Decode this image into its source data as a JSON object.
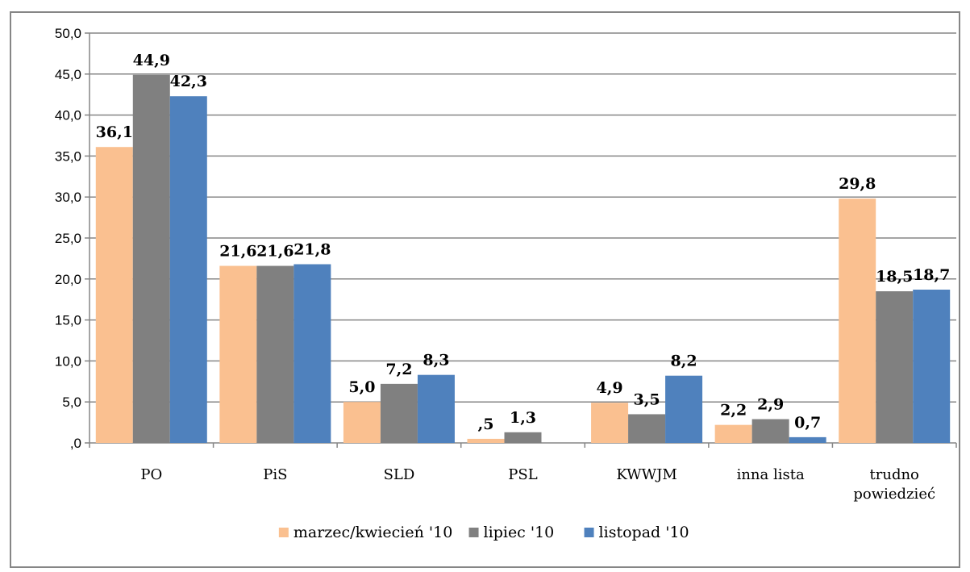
{
  "chart_data": {
    "type": "bar",
    "title": "",
    "xlabel": "",
    "ylabel": "",
    "ylim": [
      0,
      50
    ],
    "yticks": [
      0,
      5,
      10,
      15,
      20,
      25,
      30,
      35,
      40,
      45,
      50
    ],
    "ytick_labels": [
      ",0",
      "5,0",
      "10,0",
      "15,0",
      "20,0",
      "25,0",
      "30,0",
      "35,0",
      "40,0",
      "45,0",
      "50,0"
    ],
    "grid": true,
    "legend_position": "bottom",
    "categories": [
      [
        "PO"
      ],
      [
        "PiS"
      ],
      [
        "SLD"
      ],
      [
        "PSL"
      ],
      [
        "KWWJM"
      ],
      [
        "inna lista"
      ],
      [
        "trudno",
        "powiedzieć"
      ]
    ],
    "series": [
      {
        "name": "marzec/kwiecień '10",
        "color": "#FAC090",
        "values": [
          36.1,
          21.6,
          5.0,
          0.5,
          4.9,
          2.2,
          29.8
        ],
        "labels": [
          "36,1",
          "21,6",
          "5,0",
          ",5",
          "4,9",
          "2,2",
          "29,8"
        ]
      },
      {
        "name": "lipiec '10",
        "color": "#808080",
        "values": [
          44.9,
          21.6,
          7.2,
          1.3,
          3.5,
          2.9,
          18.5
        ],
        "labels": [
          "44,9",
          "21,6",
          "7,2",
          "1,3",
          "3,5",
          "2,9",
          "18,5"
        ]
      },
      {
        "name": "listopad '10",
        "color": "#4F81BD",
        "values": [
          42.3,
          21.8,
          8.3,
          null,
          8.2,
          0.7,
          18.7
        ],
        "labels": [
          "42,3",
          "21,8",
          "8,3",
          "",
          "8,2",
          "0,7",
          "18,7"
        ]
      }
    ]
  }
}
